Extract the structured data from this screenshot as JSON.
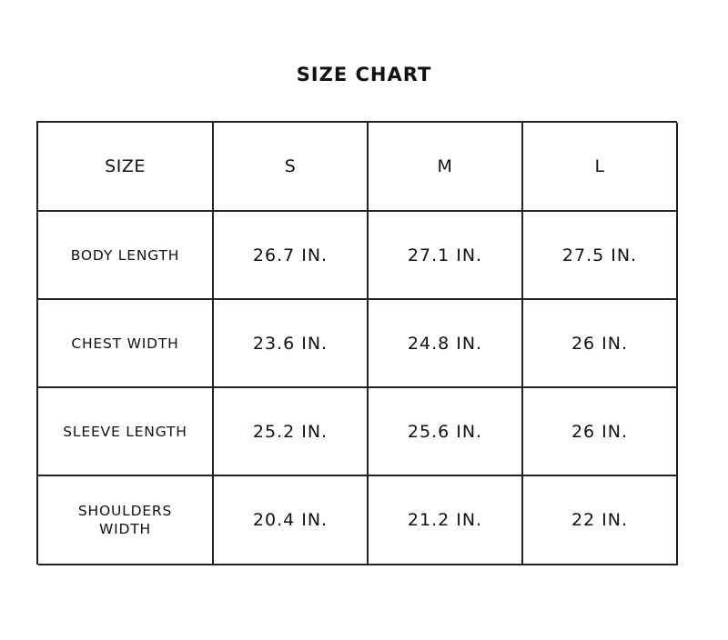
{
  "title": "SIZE CHART",
  "columns": [
    "SIZE",
    "S",
    "M",
    "L"
  ],
  "rows": [
    {
      "label": "BODY LENGTH",
      "values": [
        "26.7 IN.",
        "27.1 IN.",
        "27.5 IN."
      ]
    },
    {
      "label": "CHEST WIDTH",
      "values": [
        "23.6 IN.",
        "24.8 IN.",
        "26 IN."
      ]
    },
    {
      "label": "SLEEVE LENGTH",
      "values": [
        "25.2 IN.",
        "25.6 IN.",
        "26 IN."
      ]
    },
    {
      "label": "SHOULDERS WIDTH",
      "values": [
        "20.4 IN.",
        "21.2 IN.",
        "22 IN."
      ]
    }
  ]
}
